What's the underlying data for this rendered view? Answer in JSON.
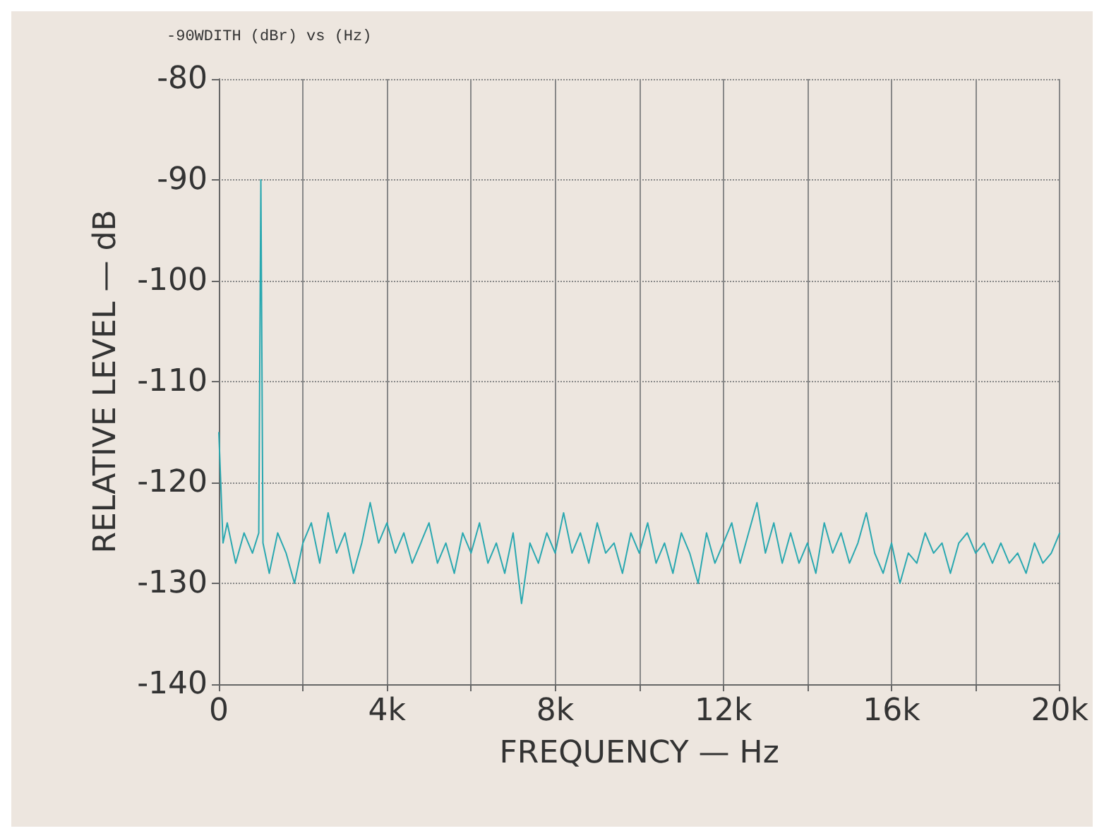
{
  "chart_data": {
    "type": "line",
    "title": "-90WDITH (dBr) vs (Hz)",
    "xlabel": "FREQUENCY — Hz",
    "ylabel": "RELATIVE LEVEL — dB",
    "xlim": [
      0,
      20000
    ],
    "xticks": [
      {
        "value": 0,
        "label": "0"
      },
      {
        "value": 2000,
        "label": null
      },
      {
        "value": 4000,
        "label": "4k"
      },
      {
        "value": 6000,
        "label": null
      },
      {
        "value": 8000,
        "label": "8k"
      },
      {
        "value": 10000,
        "label": null
      },
      {
        "value": 12000,
        "label": "12k"
      },
      {
        "value": 14000,
        "label": null
      },
      {
        "value": 16000,
        "label": "16k"
      },
      {
        "value": 18000,
        "label": null
      },
      {
        "value": 20000,
        "label": "20k"
      }
    ],
    "ylim": [
      -140,
      -80
    ],
    "yticks": [
      -140,
      -130,
      -120,
      -110,
      -100,
      -90,
      -80
    ],
    "grid": true,
    "marker": "none",
    "line_style": "solid",
    "series": [
      {
        "color": "#2aa8b0",
        "x": [
          0,
          100,
          200,
          400,
          600,
          800,
          950,
          1000,
          1050,
          1200,
          1400,
          1600,
          1800,
          2000,
          2200,
          2400,
          2600,
          2800,
          3000,
          3200,
          3400,
          3600,
          3800,
          4000,
          4200,
          4400,
          4600,
          4800,
          5000,
          5200,
          5400,
          5600,
          5800,
          6000,
          6200,
          6400,
          6600,
          6800,
          7000,
          7200,
          7400,
          7600,
          7800,
          8000,
          8200,
          8400,
          8600,
          8800,
          9000,
          9200,
          9400,
          9600,
          9800,
          10000,
          10200,
          10400,
          10600,
          10800,
          11000,
          11200,
          11400,
          11600,
          11800,
          12000,
          12200,
          12400,
          12600,
          12800,
          13000,
          13200,
          13400,
          13600,
          13800,
          14000,
          14200,
          14400,
          14600,
          14800,
          15000,
          15200,
          15400,
          15600,
          15800,
          16000,
          16200,
          16400,
          16600,
          16800,
          17000,
          17200,
          17400,
          17600,
          17800,
          18000,
          18200,
          18400,
          18600,
          18800,
          19000,
          19200,
          19400,
          19600,
          19800,
          20000
        ],
        "values": [
          -115,
          -126,
          -124,
          -128,
          -125,
          -127,
          -125,
          -90,
          -126,
          -129,
          -125,
          -127,
          -130,
          -126,
          -124,
          -128,
          -123,
          -127,
          -125,
          -129,
          -126,
          -122,
          -126,
          -124,
          -127,
          -125,
          -128,
          -126,
          -124,
          -128,
          -126,
          -129,
          -125,
          -127,
          -124,
          -128,
          -126,
          -129,
          -125,
          -132,
          -126,
          -128,
          -125,
          -127,
          -123,
          -127,
          -125,
          -128,
          -124,
          -127,
          -126,
          -129,
          -125,
          -127,
          -124,
          -128,
          -126,
          -129,
          -125,
          -127,
          -130,
          -125,
          -128,
          -126,
          -124,
          -128,
          -125,
          -122,
          -127,
          -124,
          -128,
          -125,
          -128,
          -126,
          -129,
          -124,
          -127,
          -125,
          -128,
          -126,
          -123,
          -127,
          -129,
          -126,
          -130,
          -127,
          -128,
          -125,
          -127,
          -126,
          -129,
          -126,
          -125,
          -127,
          -126,
          -128,
          -126,
          -128,
          -127,
          -129,
          -126,
          -128,
          -127,
          -125
        ]
      }
    ]
  }
}
